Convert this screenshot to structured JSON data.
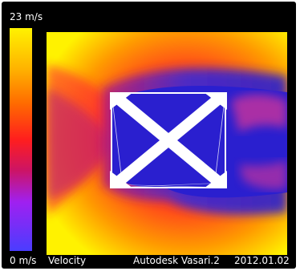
{
  "legend": {
    "max_label": "23 m/s",
    "min_label": "0 m/s",
    "colors": [
      "#fff200",
      "#ffb400",
      "#ff6a00",
      "#ff1e1e",
      "#cc1466",
      "#a020f0",
      "#4a3dff"
    ]
  },
  "title": "Velocity",
  "footer": {
    "app": "Autodesk Vasari.2",
    "date": "2012.01.02"
  },
  "field": {
    "background_colors": [
      "#fff200",
      "#ff9a00",
      "#ff2a2a",
      "#b51e7a",
      "#2a1fcf"
    ],
    "building_shape": "cross-braced-square"
  }
}
